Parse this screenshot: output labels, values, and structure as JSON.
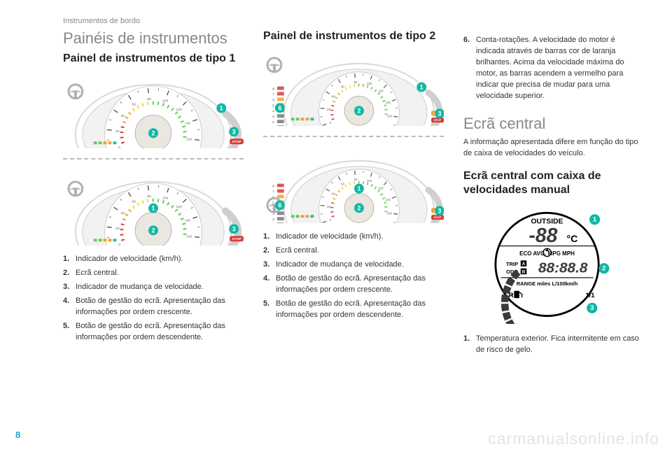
{
  "section_header": "Instrumentos de bordo",
  "page_number": "8",
  "watermark": "carmanualsonline.info",
  "col1": {
    "h1": "Painéis de instrumentos",
    "h2": "Painel de instrumentos de tipo 1",
    "items": [
      {
        "n": "1.",
        "t": "Indicador de velocidade (km/h)."
      },
      {
        "n": "2.",
        "t": "Ecrã central."
      },
      {
        "n": "3.",
        "t": "Indicador de mudança de velocidade."
      },
      {
        "n": "4.",
        "t": "Botão de gestão do ecrã. Apresentação das informações por ordem crescente."
      },
      {
        "n": "5.",
        "t": "Botão de gestão do ecrã. Apresentação das informações por ordem descendente."
      }
    ]
  },
  "col2": {
    "h2": "Painel de instrumentos de tipo 2",
    "items": [
      {
        "n": "1.",
        "t": "Indicador de velocidade (km/h)."
      },
      {
        "n": "2.",
        "t": "Ecrã central."
      },
      {
        "n": "3.",
        "t": "Indicador de mudança de velocidade."
      },
      {
        "n": "4.",
        "t": "Botão de gestão do ecrã. Apresentação das informações por ordem crescente."
      },
      {
        "n": "5.",
        "t": "Botão de gestão do ecrã. Apresentação das informações por ordem descendente."
      }
    ]
  },
  "col3": {
    "item6": {
      "n": "6.",
      "t": "Conta-rotações. A velocidade do motor é indicada através de barras cor de laranja brilhantes. Acima da velocidade máxima do motor, as barras acendem a vermelho para indicar que precisa de mudar para uma velocidade superior."
    },
    "h1b": "Ecrã central",
    "p1": "A informação apresentada difere em função do tipo de caixa de velocidades do veículo.",
    "h2b": "Ecrã central com caixa de velocidades manual",
    "items": [
      {
        "n": "1.",
        "t": "Temperatura exterior. Fica intermitente em caso de risco de gelo."
      }
    ]
  },
  "gauge": {
    "ring_outer": "#d9d9d9",
    "ring_inner": "#f2f2f2",
    "tick_color": "#555555",
    "center_fill": "#e9e7df",
    "center_stroke": "#b8b5a8",
    "callout_fill": "#0fb8a6",
    "callout_text": "#ffffff",
    "wheel_fill": "#b0b0b0",
    "stop_fill": "#d63c3c",
    "warn_green": "#66cc55",
    "warn_orange": "#f2a22c",
    "warn_teal": "#1fc2b2",
    "disp_text": "DISP",
    "speed_labels": [
      "0",
      "10",
      "20",
      "30",
      "40",
      "50",
      "60",
      "70",
      "80",
      "90",
      "100",
      "110",
      "120",
      "130",
      "140",
      "150",
      "160",
      "170"
    ],
    "type2_nums": [
      "0",
      "1",
      "2",
      "3",
      "4",
      "5",
      "6",
      "7",
      "8"
    ]
  },
  "display": {
    "outside_label": "OUTSIDE",
    "temp": "-88",
    "unit": "°C",
    "row2": "ECO  AVG.        MPG  MPH",
    "trip": "TRIP",
    "odo": "ODO",
    "digits": "88:88.8",
    "range_row": "RANGE   miles L/100km/h",
    "fuel_label_r": "R",
    "fuel_label_f": "1/1",
    "bg": "#ffffff",
    "stroke": "#000000",
    "seg_fill": "#3a3a3a",
    "callout_fill": "#0fb8a6"
  }
}
